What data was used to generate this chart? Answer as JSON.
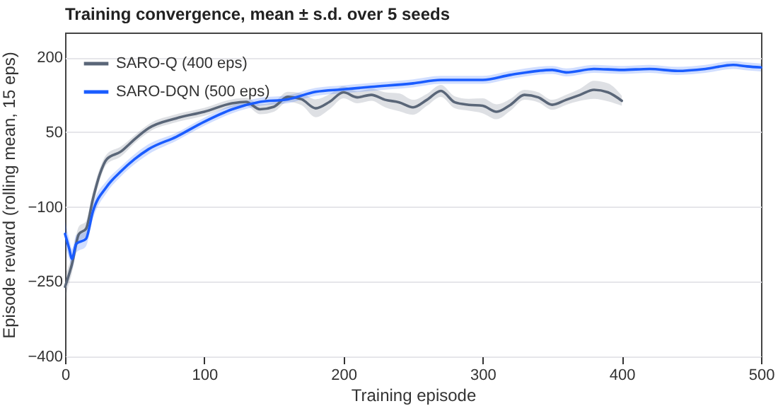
{
  "chart_data": {
    "type": "line",
    "title": "Training convergence, mean ± s.d. over 5 seeds",
    "xlabel": "Training episode",
    "ylabel": "Episode reward (rolling mean, 15 eps)",
    "xlim": [
      0,
      500
    ],
    "xticks": [
      0,
      100,
      200,
      300,
      400,
      500
    ],
    "ylim": [
      -400,
      250
    ],
    "yticks": [
      -400,
      -250,
      -100,
      50,
      200
    ],
    "grid": "y",
    "legend": "top left",
    "line_style": "solid",
    "series": [
      {
        "name": "SARO-Q (400 eps)",
        "color": "#5a6678",
        "x": [
          0,
          2,
          5,
          10,
          15,
          20,
          25,
          30,
          40,
          50,
          60,
          80,
          100,
          120,
          130,
          140,
          150,
          160,
          170,
          180,
          190,
          200,
          210,
          220,
          230,
          240,
          250,
          260,
          270,
          280,
          290,
          300,
          310,
          320,
          330,
          340,
          350,
          360,
          370,
          380,
          390,
          400
        ],
        "values": [
          -260,
          -243,
          -214,
          -154,
          -144,
          -84,
          -34,
          -4,
          11,
          36,
          58,
          78,
          91,
          108,
          111,
          96,
          101,
          121,
          116,
          98,
          111,
          130,
          120,
          125,
          115,
          110,
          100,
          115,
          133,
          110,
          105,
          103,
          91,
          105,
          125,
          120,
          105,
          115,
          125,
          135,
          130,
          113
        ],
        "lower": [
          -285,
          -263,
          -232,
          -169,
          -159,
          -99,
          -46,
          -14,
          1,
          28,
          50,
          70,
          83,
          100,
          103,
          86,
          91,
          111,
          104,
          80,
          96,
          118,
          108,
          113,
          100,
          92,
          85,
          103,
          121,
          98,
          93,
          88,
          76,
          93,
          115,
          110,
          95,
          105,
          113,
          117,
          112,
          103
        ],
        "upper": [
          -235,
          -223,
          -196,
          -139,
          -129,
          -69,
          -22,
          6,
          21,
          44,
          66,
          86,
          99,
          116,
          119,
          106,
          111,
          131,
          128,
          116,
          126,
          142,
          132,
          137,
          130,
          128,
          115,
          127,
          145,
          122,
          117,
          118,
          106,
          117,
          135,
          130,
          115,
          125,
          137,
          153,
          148,
          123
        ]
      },
      {
        "name": "SARO-DQN (500 eps)",
        "color": "#1a5cff",
        "x": [
          0,
          3,
          5,
          8,
          15,
          20,
          30,
          40,
          50,
          60,
          80,
          100,
          120,
          140,
          160,
          180,
          200,
          220,
          250,
          270,
          300,
          320,
          350,
          360,
          380,
          400,
          420,
          440,
          460,
          480,
          490,
          500
        ],
        "values": [
          -154,
          -184,
          -204,
          -174,
          -164,
          -109,
          -59,
          -29,
          -4,
          16,
          41,
          71,
          96,
          111,
          116,
          131,
          136,
          141,
          148,
          155,
          155,
          165,
          175,
          170,
          177,
          175,
          177,
          173,
          177,
          185,
          182,
          180
        ],
        "lower": [
          -179,
          -204,
          -224,
          -192,
          -179,
          -124,
          -71,
          -39,
          -14,
          6,
          33,
          63,
          88,
          103,
          108,
          123,
          128,
          133,
          140,
          147,
          147,
          157,
          167,
          162,
          169,
          167,
          169,
          165,
          169,
          177,
          174,
          172
        ],
        "upper": [
          -129,
          -164,
          -184,
          -156,
          -149,
          -94,
          -47,
          -19,
          6,
          26,
          49,
          79,
          104,
          119,
          124,
          139,
          144,
          149,
          156,
          163,
          163,
          173,
          183,
          178,
          185,
          183,
          185,
          181,
          185,
          193,
          190,
          188
        ]
      }
    ]
  }
}
